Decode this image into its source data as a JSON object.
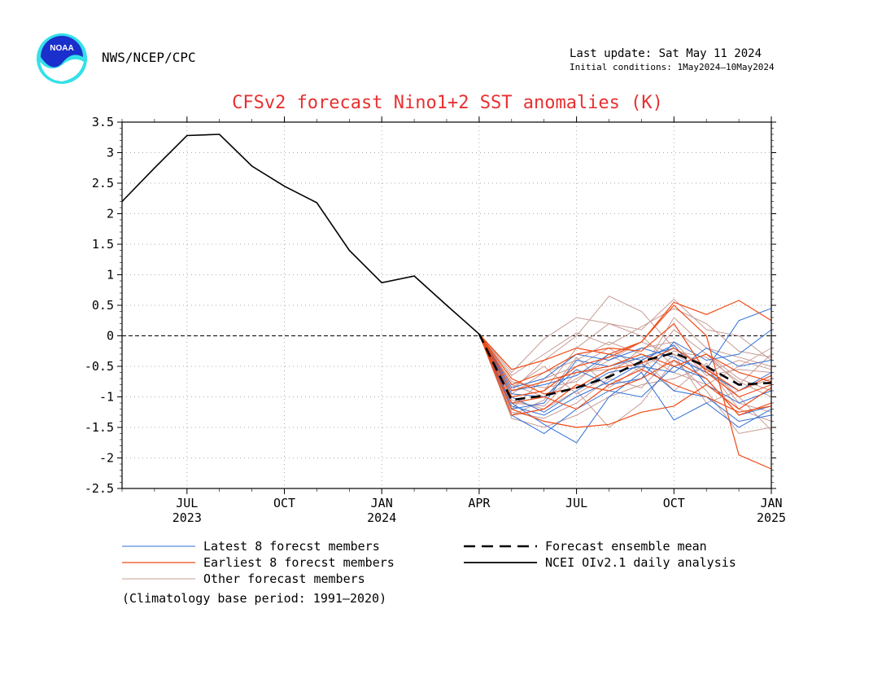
{
  "header": {
    "agency": "NWS/NCEP/CPC",
    "last_update": "Last update: Sat May 11 2024",
    "initial_conditions": "Initial conditions: 1May2024–10May2024",
    "logo_text": "NOAA"
  },
  "colors": {
    "title": "#e83030",
    "latest_members": "#2f6fd6",
    "earliest_members": "#ef4a16",
    "other_members": "#c79c96",
    "ensemble_mean": "#000000",
    "observed": "#000000",
    "logo_blue": "#1a2fcc",
    "logo_cyan": "#33e0e8"
  },
  "legend": {
    "latest": "Latest 8 forecst members",
    "earliest": "Earliest 8 forecst members",
    "other": "Other forecast members",
    "mean": "Forecast ensemble mean",
    "observed": "NCEI OIv2.1 daily analysis"
  },
  "footnote": "(Climatology base period: 1991–2020)",
  "chart_data": {
    "type": "line",
    "title": "CFSv2 forecast Nino1+2 SST anomalies (K)",
    "ylim": [
      -2.5,
      3.5
    ],
    "xlim_months": [
      "2023-05",
      "2025-01"
    ],
    "y_ticks": [
      "3.5",
      "3",
      "2.5",
      "2",
      "1.5",
      "1",
      "0.5",
      "0",
      "-0.5",
      "-1",
      "-1.5",
      "-2",
      "-2.5"
    ],
    "x_ticks": [
      {
        "month": "2023-07",
        "label": "JUL",
        "year": "2023"
      },
      {
        "month": "2023-10",
        "label": "OCT",
        "year": ""
      },
      {
        "month": "2024-01",
        "label": "JAN",
        "year": "2024"
      },
      {
        "month": "2024-04",
        "label": "APR",
        "year": ""
      },
      {
        "month": "2024-07",
        "label": "JUL",
        "year": ""
      },
      {
        "month": "2024-10",
        "label": "OCT",
        "year": ""
      },
      {
        "month": "2025-01",
        "label": "JAN",
        "year": "2025"
      }
    ],
    "grid": true,
    "zero_line": true,
    "forecast_months": [
      "2024-04",
      "2024-05",
      "2024-06",
      "2024-07",
      "2024-08",
      "2024-09",
      "2024-10",
      "2024-11",
      "2024-12",
      "2025-01"
    ],
    "observed": {
      "name": "NCEI OIv2.1 daily analysis",
      "x": [
        "2023-05",
        "2023-06",
        "2023-07",
        "2023-08",
        "2023-09",
        "2023-10",
        "2023-11",
        "2023-12",
        "2024-01",
        "2024-02",
        "2024-03",
        "2024-04"
      ],
      "y": [
        2.2,
        2.75,
        3.28,
        3.3,
        2.78,
        2.45,
        2.18,
        1.4,
        0.87,
        0.98,
        0.5,
        0.03
      ]
    },
    "ensemble_mean": {
      "name": "Forecast ensemble mean",
      "y": [
        0.03,
        -1.05,
        -0.98,
        -0.85,
        -0.67,
        -0.42,
        -0.28,
        -0.5,
        -0.8,
        -0.77
      ]
    },
    "latest_members": [
      [
        0.03,
        -1.1,
        -1.45,
        -1.75,
        -1.0,
        -0.6,
        -1.38,
        -1.1,
        -1.5,
        -1.2
      ],
      [
        0.03,
        -1.2,
        -1.1,
        -0.4,
        -0.5,
        -0.35,
        -0.2,
        -0.55,
        0.25,
        0.45
      ],
      [
        0.03,
        -0.95,
        -1.0,
        -0.55,
        -0.8,
        -0.7,
        -0.1,
        -0.4,
        -0.3,
        0.1
      ],
      [
        0.03,
        -1.3,
        -1.6,
        -1.2,
        -0.9,
        -1.0,
        -0.5,
        -0.7,
        -1.3,
        -1.15
      ],
      [
        0.03,
        -0.85,
        -0.7,
        -0.3,
        -0.4,
        -0.2,
        -0.35,
        -0.6,
        -0.9,
        -0.6
      ],
      [
        0.03,
        -1.0,
        -1.25,
        -0.9,
        -0.6,
        -0.5,
        -0.6,
        -0.2,
        -0.5,
        -0.4
      ],
      [
        0.03,
        -1.15,
        -1.3,
        -1.0,
        -0.75,
        -0.45,
        -0.9,
        -1.0,
        -1.4,
        -1.3
      ],
      [
        0.03,
        -0.9,
        -0.8,
        -0.65,
        -0.3,
        -0.4,
        -0.15,
        -0.8,
        -1.1,
        -0.9
      ]
    ],
    "earliest_members": [
      [
        0.03,
        -0.55,
        -0.4,
        -0.2,
        -0.3,
        -0.1,
        0.55,
        0.35,
        0.58,
        0.25
      ],
      [
        0.03,
        -1.0,
        -0.9,
        -0.5,
        -0.35,
        -0.1,
        0.5,
        0.0,
        -1.95,
        -2.18
      ],
      [
        0.03,
        -1.2,
        -1.4,
        -1.5,
        -1.45,
        -1.25,
        -1.15,
        -0.8,
        -1.2,
        -0.85
      ],
      [
        0.03,
        -0.8,
        -0.6,
        -0.3,
        -0.2,
        -0.25,
        0.2,
        -0.6,
        -1.0,
        -0.8
      ],
      [
        0.03,
        -1.3,
        -1.2,
        -0.8,
        -0.9,
        -0.7,
        -0.4,
        -0.7,
        -1.3,
        -1.1
      ],
      [
        0.03,
        -0.9,
        -0.75,
        -0.6,
        -0.5,
        -0.3,
        -0.5,
        -0.3,
        -0.6,
        -0.75
      ],
      [
        0.03,
        -1.1,
        -1.0,
        -1.2,
        -0.8,
        -0.55,
        -0.8,
        -1.0,
        -1.25,
        -1.15
      ],
      [
        0.03,
        -0.7,
        -0.95,
        -0.85,
        -0.55,
        -0.45,
        -0.2,
        -0.55,
        -0.9,
        -0.65
      ]
    ],
    "other_members": [
      [
        0.03,
        -0.6,
        -0.05,
        0.3,
        0.2,
        0.1,
        0.6,
        0.1,
        0.0,
        -0.4
      ],
      [
        0.03,
        -0.9,
        -0.4,
        0.0,
        0.65,
        0.4,
        -0.2,
        -0.5,
        -1.0,
        -1.55
      ],
      [
        0.03,
        -1.05,
        -1.2,
        -0.9,
        -1.5,
        -1.1,
        -0.4,
        -0.9,
        -1.6,
        -1.5
      ],
      [
        0.03,
        -1.2,
        -0.7,
        -0.5,
        -0.2,
        -0.55,
        0.1,
        -0.3,
        -0.8,
        -0.3
      ],
      [
        0.03,
        -0.8,
        -1.0,
        -0.7,
        -0.4,
        -0.1,
        -0.3,
        -0.6,
        -0.4,
        -0.55
      ],
      [
        0.03,
        -1.35,
        -1.5,
        -1.3,
        -1.0,
        -0.8,
        -0.7,
        -0.5,
        -1.2,
        -1.4
      ],
      [
        0.03,
        -1.0,
        -0.9,
        -0.2,
        0.2,
        0.0,
        -0.5,
        -0.3,
        -0.7,
        -0.9
      ],
      [
        0.03,
        -0.95,
        -0.6,
        -0.4,
        -0.1,
        -0.3,
        -0.6,
        -0.8,
        -0.5,
        -0.2
      ],
      [
        0.03,
        -1.25,
        -1.35,
        -1.1,
        -0.7,
        -0.85,
        -0.3,
        -1.1,
        -0.9,
        -0.7
      ],
      [
        0.03,
        -0.75,
        -0.85,
        -0.75,
        -0.3,
        -0.6,
        0.3,
        -0.2,
        -0.35,
        -0.5
      ],
      [
        0.03,
        -1.1,
        -1.15,
        -0.6,
        -0.55,
        -0.35,
        -0.9,
        -0.45,
        -1.1,
        -1.25
      ],
      [
        0.03,
        -0.85,
        -0.5,
        -0.95,
        -0.65,
        -0.2,
        -0.1,
        -0.65,
        -0.55,
        -0.6
      ],
      [
        0.03,
        -1.3,
        -1.05,
        -0.35,
        -0.85,
        -0.5,
        -0.25,
        -0.35,
        -0.75,
        -1.0
      ],
      [
        0.03,
        -0.65,
        -0.3,
        0.05,
        -0.15,
        0.15,
        0.45,
        0.2,
        -0.25,
        -0.35
      ]
    ]
  }
}
